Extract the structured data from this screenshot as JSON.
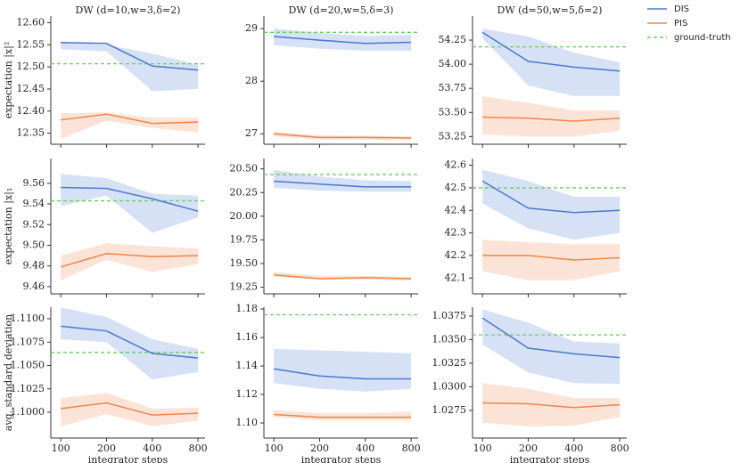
{
  "chart_data": [
    {
      "type": "line",
      "title": "DW (d=10,w=3,δ=2)",
      "ylabel": "expectation |x|²",
      "x": [
        100,
        200,
        400,
        800
      ],
      "xlim": [
        86,
        890
      ],
      "xticks": [
        100,
        200,
        400,
        800
      ],
      "xscale": "log",
      "ylim": [
        12.325,
        12.615
      ],
      "yticks": [
        12.35,
        {
          "value": 12.4,
          "label": "12.40"
        },
        12.45,
        {
          "value": 12.5,
          "label": "12.50"
        },
        12.55,
        {
          "value": 12.6,
          "label": "12.60"
        }
      ],
      "series": [
        {
          "name": "DIS",
          "color": "#4878d0",
          "values": [
            12.555,
            12.553,
            12.502,
            12.493
          ],
          "upper": [
            12.557,
            12.55,
            12.53,
            12.505
          ],
          "lower": [
            12.54,
            12.535,
            12.445,
            12.45
          ]
        },
        {
          "name": "PIS",
          "color": "#ee854a",
          "values": [
            12.38,
            12.393,
            12.372,
            12.375
          ],
          "upper": [
            12.395,
            12.397,
            12.385,
            12.385
          ],
          "lower": [
            12.337,
            12.378,
            12.362,
            12.352
          ]
        }
      ],
      "reference": {
        "name": "ground-truth",
        "value": 12.507,
        "color": "#6acc64"
      }
    },
    {
      "type": "line",
      "title": "DW (d=20,w=5,δ=3)",
      "x": [
        100,
        200,
        400,
        800
      ],
      "xlim": [
        86,
        890
      ],
      "xticks": [
        100,
        200,
        400,
        800
      ],
      "xscale": "log",
      "ylim": [
        26.8,
        29.24
      ],
      "yticks": [
        27,
        28,
        29
      ],
      "series": [
        {
          "name": "DIS",
          "color": "#4878d0",
          "values": [
            28.85,
            28.78,
            28.72,
            28.74
          ],
          "upper": [
            29.0,
            28.92,
            28.86,
            28.88
          ],
          "lower": [
            28.68,
            28.62,
            28.58,
            28.58
          ]
        },
        {
          "name": "PIS",
          "color": "#ee854a",
          "values": [
            27.0,
            26.93,
            26.93,
            26.92
          ],
          "upper": [
            27.04,
            26.97,
            26.96,
            26.95
          ],
          "lower": [
            26.95,
            26.89,
            26.88,
            26.88
          ]
        }
      ],
      "reference": {
        "name": "ground-truth",
        "value": 28.93,
        "color": "#6acc64"
      }
    },
    {
      "type": "line",
      "title": "DW (d=50,w=5,δ=2)",
      "x": [
        100,
        200,
        400,
        800
      ],
      "xlim": [
        86,
        890
      ],
      "xticks": [
        100,
        200,
        400,
        800
      ],
      "xscale": "log",
      "ylim": [
        53.17,
        54.5
      ],
      "yticks": [
        53.25,
        {
          "value": 53.5,
          "label": "53.50"
        },
        53.75,
        {
          "value": 54,
          "label": "54.00"
        },
        54.25
      ],
      "series": [
        {
          "name": "DIS",
          "color": "#4878d0",
          "values": [
            54.33,
            54.03,
            53.97,
            53.93
          ],
          "upper": [
            54.37,
            54.29,
            54.12,
            54.02
          ],
          "lower": [
            54.27,
            53.78,
            53.67,
            53.67
          ]
        },
        {
          "name": "PIS",
          "color": "#ee854a",
          "values": [
            53.45,
            53.44,
            53.41,
            53.44
          ],
          "upper": [
            53.67,
            53.6,
            53.52,
            53.52
          ],
          "lower": [
            53.27,
            53.25,
            53.25,
            53.31
          ]
        }
      ],
      "reference": {
        "name": "ground-truth",
        "value": 54.18,
        "color": "#6acc64"
      }
    },
    {
      "type": "line",
      "ylabel": "expectation |x|₁",
      "x": [
        100,
        200,
        400,
        800
      ],
      "xlim": [
        86,
        890
      ],
      "xticks": [
        100,
        200,
        400,
        800
      ],
      "xscale": "log",
      "ylim": [
        9.453,
        9.584
      ],
      "yticks": [
        9.46,
        9.48,
        {
          "value": 9.5,
          "label": "9.50"
        },
        9.52,
        9.54,
        9.56
      ],
      "series": [
        {
          "name": "DIS",
          "color": "#4878d0",
          "values": [
            9.556,
            9.555,
            9.545,
            9.533
          ],
          "upper": [
            9.569,
            9.565,
            9.55,
            9.548
          ],
          "lower": [
            9.538,
            9.548,
            9.512,
            9.527
          ]
        },
        {
          "name": "PIS",
          "color": "#ee854a",
          "values": [
            9.479,
            9.492,
            9.489,
            9.49
          ],
          "upper": [
            9.49,
            9.502,
            9.499,
            9.497
          ],
          "lower": [
            9.466,
            9.486,
            9.474,
            9.482
          ]
        }
      ],
      "reference": {
        "name": "ground-truth",
        "value": 9.543,
        "color": "#6acc64"
      }
    },
    {
      "type": "line",
      "x": [
        100,
        200,
        400,
        800
      ],
      "xlim": [
        86,
        890
      ],
      "xticks": [
        100,
        200,
        400,
        800
      ],
      "xscale": "log",
      "ylim": [
        19.18,
        20.61
      ],
      "yticks": [
        19.25,
        {
          "value": 19.5,
          "label": "19.50"
        },
        19.75,
        {
          "value": 20,
          "label": "20.00"
        },
        20.25,
        {
          "value": 20.5,
          "label": "20.50"
        }
      ],
      "series": [
        {
          "name": "DIS",
          "color": "#4878d0",
          "values": [
            20.37,
            20.34,
            20.31,
            20.31
          ],
          "upper": [
            20.49,
            20.42,
            20.38,
            20.37
          ],
          "lower": [
            20.3,
            20.27,
            20.26,
            20.26
          ]
        },
        {
          "name": "PIS",
          "color": "#ee854a",
          "values": [
            19.38,
            19.34,
            19.35,
            19.34
          ],
          "upper": [
            19.41,
            19.37,
            19.37,
            19.36
          ],
          "lower": [
            19.36,
            19.33,
            19.33,
            19.32
          ]
        }
      ],
      "reference": {
        "name": "ground-truth",
        "value": 20.44,
        "color": "#6acc64"
      }
    },
    {
      "type": "line",
      "x": [
        100,
        200,
        400,
        800
      ],
      "xlim": [
        86,
        890
      ],
      "xticks": [
        100,
        200,
        400,
        800
      ],
      "xscale": "log",
      "ylim": [
        42.03,
        42.63
      ],
      "yticks": [
        42.1,
        42.2,
        42.3,
        42.4,
        42.5,
        42.6
      ],
      "series": [
        {
          "name": "DIS",
          "color": "#4878d0",
          "values": [
            42.53,
            42.41,
            42.39,
            42.4
          ],
          "upper": [
            42.58,
            42.53,
            42.46,
            42.46
          ],
          "lower": [
            42.43,
            42.32,
            42.27,
            42.3
          ]
        },
        {
          "name": "PIS",
          "color": "#ee854a",
          "values": [
            42.2,
            42.2,
            42.18,
            42.19
          ],
          "upper": [
            42.27,
            42.26,
            42.25,
            42.25
          ],
          "lower": [
            42.13,
            42.09,
            42.09,
            42.13
          ]
        }
      ],
      "reference": {
        "name": "ground-truth",
        "value": 42.5,
        "color": "#6acc64"
      }
    },
    {
      "type": "line",
      "ylabel": "avg. standard deviation",
      "xlabel": "integrator steps",
      "x": [
        100,
        200,
        400,
        800
      ],
      "xlim": [
        86,
        890
      ],
      "xticks": [
        100,
        200,
        400,
        800
      ],
      "xscale": "log",
      "ylim": [
        1.09724,
        1.11124
      ],
      "yticks": [
        {
          "value": 1.1,
          "label": "1.1000"
        },
        1.1025,
        {
          "value": 1.105,
          "label": "1.1050"
        },
        1.1075,
        {
          "value": 1.11,
          "label": "1.1100"
        }
      ],
      "series": [
        {
          "name": "DIS",
          "color": "#4878d0",
          "values": [
            1.1092,
            1.1087,
            1.1063,
            1.1058
          ],
          "upper": [
            1.1112,
            1.1102,
            1.1078,
            1.1068
          ],
          "lower": [
            1.1078,
            1.1075,
            1.1035,
            1.1043
          ]
        },
        {
          "name": "PIS",
          "color": "#ee854a",
          "values": [
            1.1004,
            1.101,
            1.0997,
            1.0999
          ],
          "upper": [
            1.1015,
            1.1021,
            1.1004,
            1.1005
          ],
          "lower": [
            1.0985,
            1.0998,
            1.0985,
            1.0991
          ]
        }
      ],
      "reference": {
        "name": "ground-truth",
        "value": 1.1064,
        "color": "#6acc64"
      }
    },
    {
      "type": "line",
      "xlabel": "integrator steps",
      "x": [
        100,
        200,
        400,
        800
      ],
      "xlim": [
        86,
        890
      ],
      "xticks": [
        100,
        200,
        400,
        800
      ],
      "xscale": "log",
      "ylim": [
        1.0894,
        1.1813
      ],
      "yticks": [
        {
          "value": 1.1,
          "label": "1.10"
        },
        1.12,
        1.14,
        1.16,
        1.18
      ],
      "series": [
        {
          "name": "DIS",
          "color": "#4878d0",
          "values": [
            1.138,
            1.133,
            1.131,
            1.131
          ],
          "upper": [
            1.152,
            1.151,
            1.15,
            1.149
          ],
          "lower": [
            1.128,
            1.124,
            1.122,
            1.124
          ]
        },
        {
          "name": "PIS",
          "color": "#ee854a",
          "values": [
            1.106,
            1.104,
            1.104,
            1.104
          ],
          "upper": [
            1.109,
            1.107,
            1.107,
            1.108
          ],
          "lower": [
            1.104,
            1.102,
            1.102,
            1.102
          ]
        }
      ],
      "reference": {
        "name": "ground-truth",
        "value": 1.176,
        "color": "#6acc64"
      }
    },
    {
      "type": "line",
      "xlabel": "integrator steps",
      "x": [
        100,
        200,
        400,
        800
      ],
      "xlim": [
        86,
        890
      ],
      "xticks": [
        100,
        200,
        400,
        800
      ],
      "xscale": "log",
      "ylim": [
        1.02457,
        1.03844
      ],
      "yticks": [
        1.0275,
        {
          "value": 1.03,
          "label": "1.0300"
        },
        1.0325,
        {
          "value": 1.035,
          "label": "1.0350"
        },
        1.0375
      ],
      "series": [
        {
          "name": "DIS",
          "color": "#4878d0",
          "values": [
            1.0373,
            1.0341,
            1.0335,
            1.0331
          ],
          "upper": [
            1.0382,
            1.0368,
            1.0348,
            1.0346
          ],
          "lower": [
            1.0345,
            1.0315,
            1.0304,
            1.0303
          ]
        },
        {
          "name": "PIS",
          "color": "#ee854a",
          "values": [
            1.0283,
            1.0282,
            1.0278,
            1.0281
          ],
          "upper": [
            1.0304,
            1.0298,
            1.0288,
            1.0288
          ],
          "lower": [
            1.0262,
            1.0258,
            1.0259,
            1.0268
          ]
        }
      ],
      "reference": {
        "name": "ground-truth",
        "value": 1.0355,
        "color": "#6acc64"
      }
    }
  ]
}
